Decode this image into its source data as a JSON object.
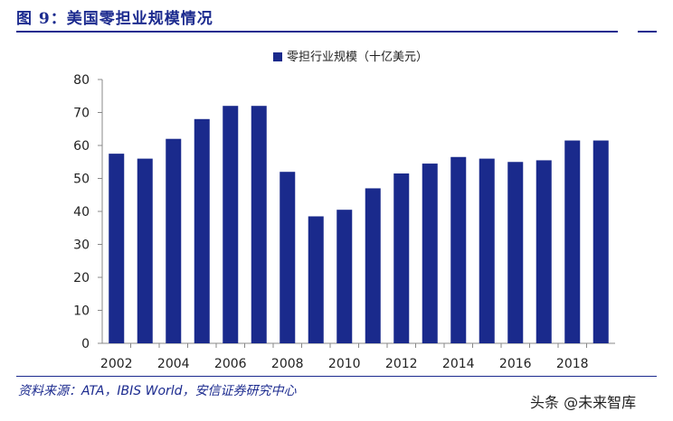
{
  "figure": {
    "title": "图 9：美国零担业规模情况",
    "source": "资料来源：ATA，IBIS World，安信证券研究中心",
    "watermark": "头条 @未来智库"
  },
  "chart_data": {
    "type": "bar",
    "title": "",
    "xlabel": "",
    "ylabel": "",
    "ylim": [
      0,
      80
    ],
    "yticks": [
      0,
      10,
      20,
      30,
      40,
      50,
      60,
      70,
      80
    ],
    "x_tick_labels": [
      "2002",
      "2004",
      "2006",
      "2008",
      "2010",
      "2012",
      "2014",
      "2016",
      "2018"
    ],
    "categories": [
      "2002",
      "2003",
      "2004",
      "2005",
      "2006",
      "2007",
      "2008",
      "2009",
      "2010",
      "2011",
      "2012",
      "2013",
      "2014",
      "2015",
      "2016",
      "2017",
      "2018",
      "2019"
    ],
    "series": [
      {
        "name": "零担行业规模（十亿美元）",
        "color": "#1a2a8c",
        "values": [
          57.5,
          56,
          62,
          68,
          72,
          72,
          52,
          38.5,
          40.5,
          47,
          51.5,
          54.5,
          56.5,
          56,
          55,
          55.5,
          61.5,
          61.5
        ]
      }
    ],
    "grid": false,
    "legend": "top-center"
  }
}
